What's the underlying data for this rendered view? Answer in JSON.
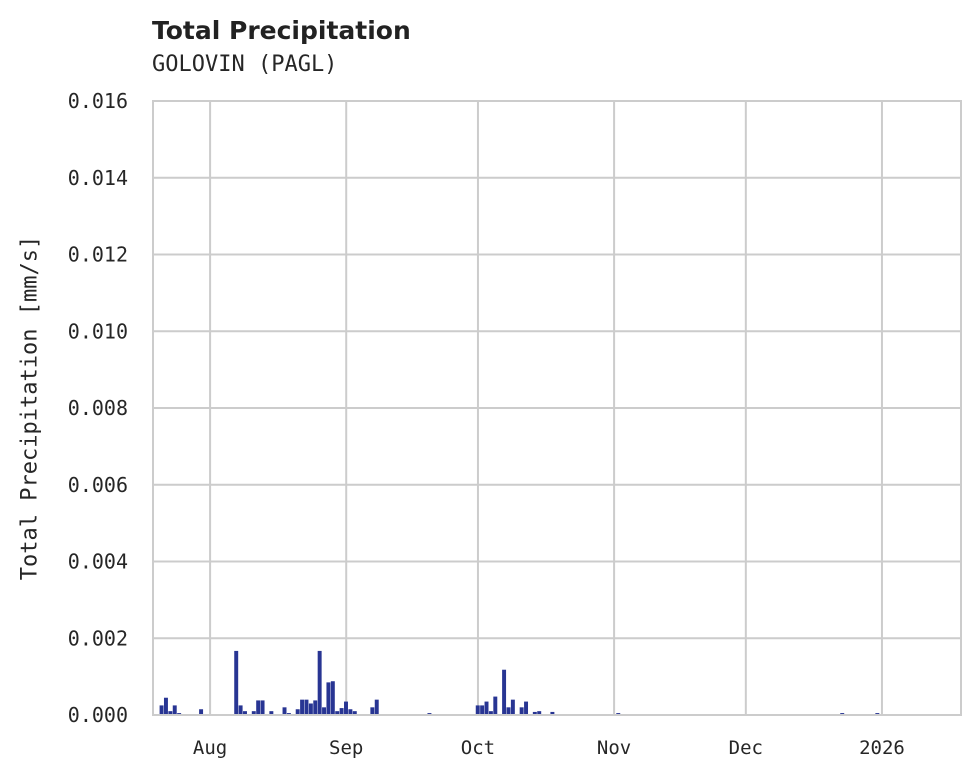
{
  "header": {
    "title": "Total Precipitation",
    "subtitle": "GOLOVIN (PAGL)"
  },
  "chart_data": {
    "type": "bar",
    "title": "Total Precipitation",
    "subtitle": "GOLOVIN (PAGL)",
    "xlabel": "",
    "ylabel": "Total Precipitation [mm/s]",
    "ylim": [
      0,
      0.016
    ],
    "yticks": [
      "0.000",
      "0.002",
      "0.004",
      "0.006",
      "0.008",
      "0.010",
      "0.012",
      "0.014",
      "0.016"
    ],
    "xticks": [
      "Aug",
      "Sep",
      "Oct",
      "Nov",
      "Dec",
      "2026"
    ],
    "xlim": [
      "2025-07-19",
      "2026-01-19"
    ],
    "grid": true,
    "legend": null,
    "color": "#283593",
    "series": [
      {
        "name": "Total Precipitation",
        "points": [
          {
            "date": "2025-07-21",
            "value": 0.00025
          },
          {
            "date": "2025-07-22",
            "value": 0.00045
          },
          {
            "date": "2025-07-23",
            "value": 0.0001
          },
          {
            "date": "2025-07-24",
            "value": 0.00025
          },
          {
            "date": "2025-07-25",
            "value": 5e-05
          },
          {
            "date": "2025-07-30",
            "value": 0.00015
          },
          {
            "date": "2025-08-07",
            "value": 0.00167
          },
          {
            "date": "2025-08-08",
            "value": 0.00025
          },
          {
            "date": "2025-08-09",
            "value": 0.0001
          },
          {
            "date": "2025-08-11",
            "value": 0.0001
          },
          {
            "date": "2025-08-12",
            "value": 0.00038
          },
          {
            "date": "2025-08-13",
            "value": 0.00038
          },
          {
            "date": "2025-08-15",
            "value": 0.0001
          },
          {
            "date": "2025-08-18",
            "value": 0.0002
          },
          {
            "date": "2025-08-19",
            "value": 5e-05
          },
          {
            "date": "2025-08-21",
            "value": 0.00015
          },
          {
            "date": "2025-08-22",
            "value": 0.0004
          },
          {
            "date": "2025-08-23",
            "value": 0.0004
          },
          {
            "date": "2025-08-24",
            "value": 0.0003
          },
          {
            "date": "2025-08-25",
            "value": 0.00038
          },
          {
            "date": "2025-08-26",
            "value": 0.00167
          },
          {
            "date": "2025-08-27",
            "value": 0.0002
          },
          {
            "date": "2025-08-28",
            "value": 0.00085
          },
          {
            "date": "2025-08-29",
            "value": 0.00088
          },
          {
            "date": "2025-08-30",
            "value": 0.0001
          },
          {
            "date": "2025-08-31",
            "value": 0.00018
          },
          {
            "date": "2025-09-01",
            "value": 0.00035
          },
          {
            "date": "2025-09-02",
            "value": 0.00015
          },
          {
            "date": "2025-09-03",
            "value": 0.0001
          },
          {
            "date": "2025-09-07",
            "value": 0.0002
          },
          {
            "date": "2025-09-08",
            "value": 0.0004
          },
          {
            "date": "2025-09-20",
            "value": 5e-05
          },
          {
            "date": "2025-10-01",
            "value": 0.00025
          },
          {
            "date": "2025-10-02",
            "value": 0.00025
          },
          {
            "date": "2025-10-03",
            "value": 0.00035
          },
          {
            "date": "2025-10-04",
            "value": 0.0001
          },
          {
            "date": "2025-10-05",
            "value": 0.00048
          },
          {
            "date": "2025-10-07",
            "value": 0.00118
          },
          {
            "date": "2025-10-08",
            "value": 0.0002
          },
          {
            "date": "2025-10-09",
            "value": 0.0004
          },
          {
            "date": "2025-10-11",
            "value": 0.0002
          },
          {
            "date": "2025-10-12",
            "value": 0.00035
          },
          {
            "date": "2025-10-14",
            "value": 8e-05
          },
          {
            "date": "2025-10-15",
            "value": 0.0001
          },
          {
            "date": "2025-10-18",
            "value": 8e-05
          },
          {
            "date": "2025-11-02",
            "value": 5e-05
          },
          {
            "date": "2025-12-23",
            "value": 5e-05
          },
          {
            "date": "2025-12-31",
            "value": 5e-05
          }
        ]
      }
    ]
  }
}
